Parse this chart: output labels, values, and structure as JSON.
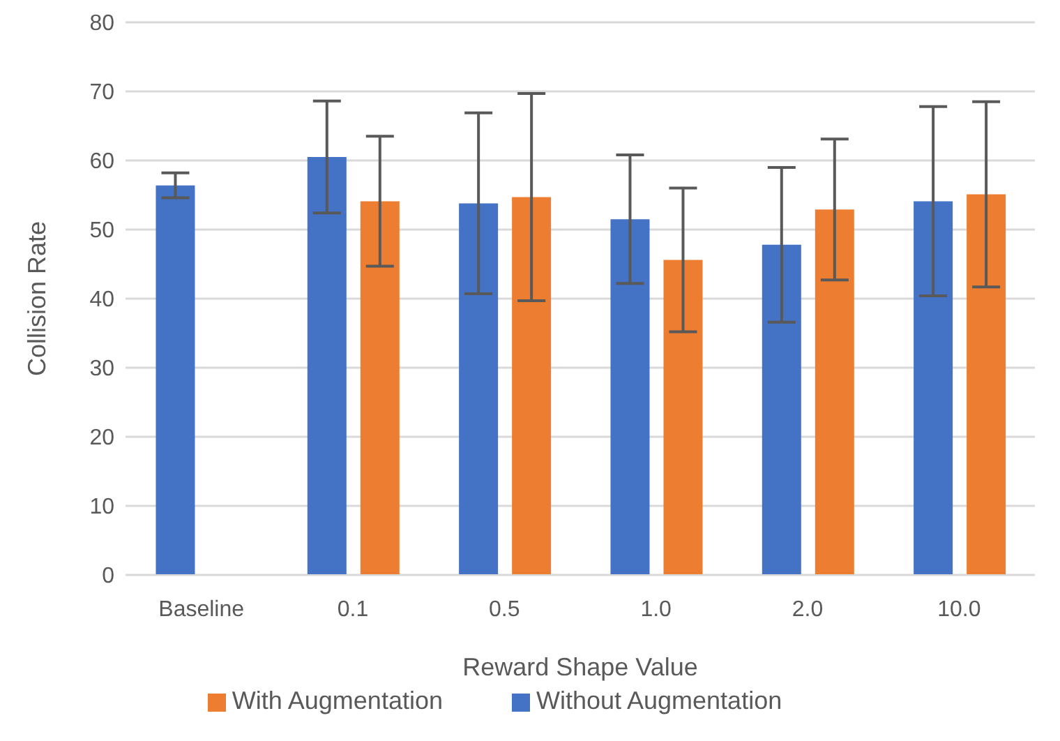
{
  "chart_data": {
    "type": "bar",
    "xlabel": "Reward Shape Value",
    "ylabel": "Collision Rate",
    "categories": [
      "Baseline",
      "0.1",
      "0.5",
      "1.0",
      "2.0",
      "10.0"
    ],
    "series": [
      {
        "name": "Without Augmentation",
        "color": "#4472c4",
        "values": [
          56.4,
          60.5,
          53.8,
          51.5,
          47.8,
          54.1
        ],
        "errors": [
          1.8,
          8.1,
          13.1,
          9.3,
          11.2,
          13.7
        ]
      },
      {
        "name": "With Augmentation",
        "color": "#ed7d31",
        "values": [
          null,
          54.1,
          54.7,
          45.6,
          52.9,
          55.1
        ],
        "errors": [
          null,
          9.4,
          15.0,
          10.4,
          10.2,
          13.4
        ]
      }
    ],
    "ylim": [
      0,
      80
    ],
    "yticks": [
      0,
      10,
      20,
      30,
      40,
      50,
      60,
      70,
      80
    ],
    "grid": "y",
    "legend": "bottom"
  }
}
